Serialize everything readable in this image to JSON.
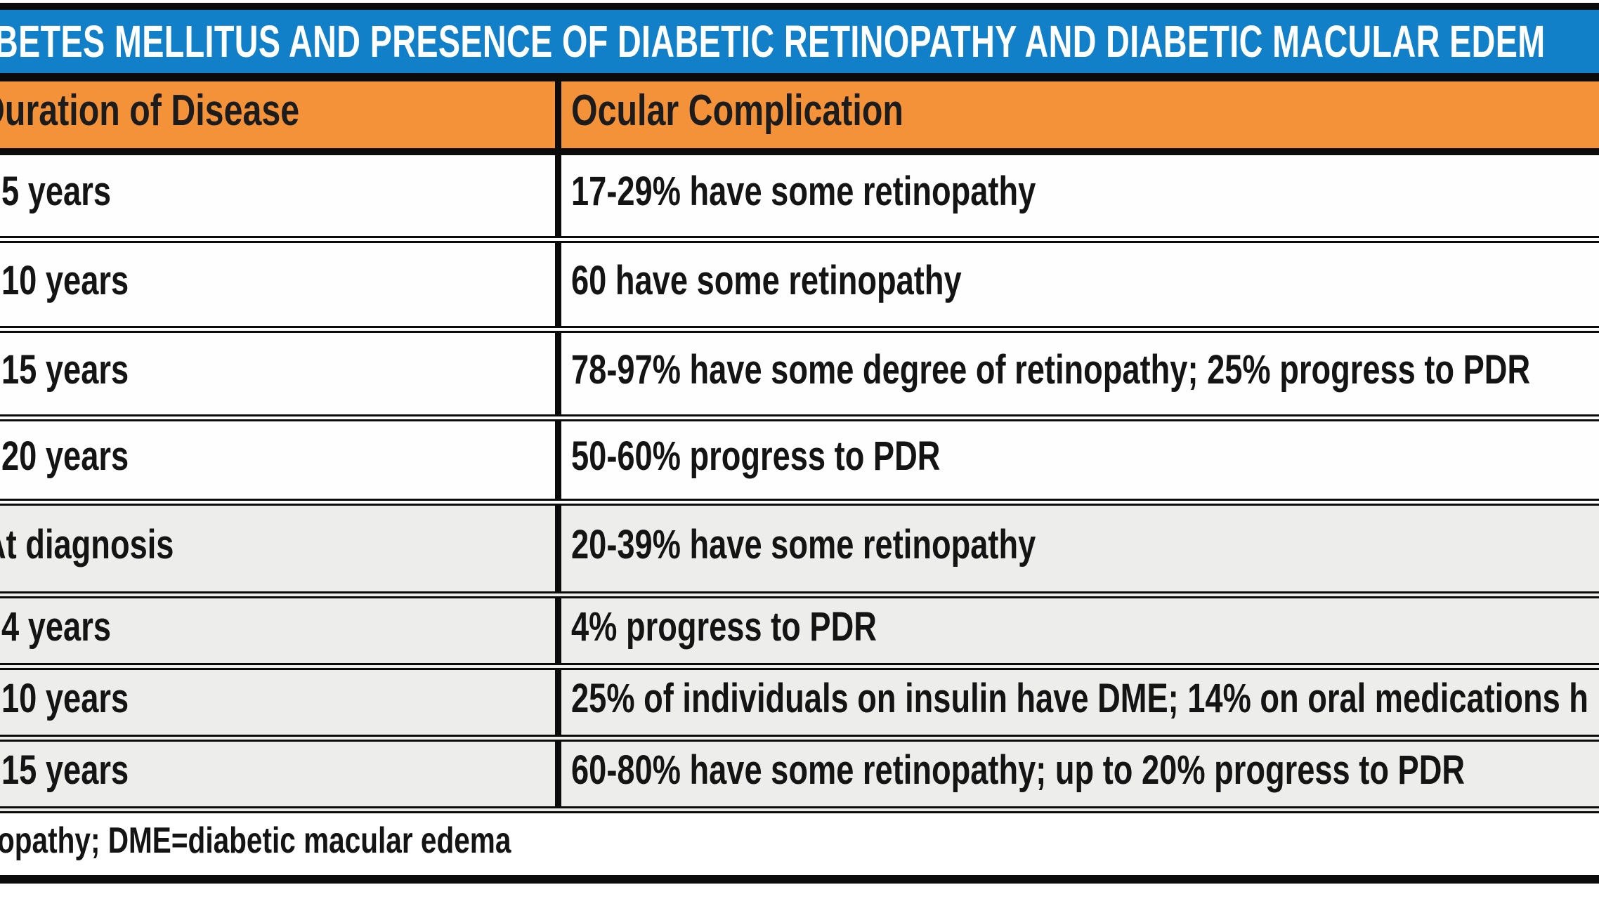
{
  "title": {
    "text": "BETES MELLITUS AND PRESENCE OF DIABETIC RETINOPATHY AND DIABETIC MACULAR EDEM"
  },
  "table": {
    "columns": [
      {
        "label": "Duration of Disease"
      },
      {
        "label": "Ocular Complication"
      }
    ],
    "rows": [
      {
        "duration": "5 years",
        "complication": "17-29% have some retinopathy"
      },
      {
        "duration": "10 years",
        "complication": "60 have some retinopathy"
      },
      {
        "duration": "15 years",
        "complication": "78-97% have some degree of retinopathy; 25% progress to PDR"
      },
      {
        "duration": "20 years",
        "complication": "50-60% progress to PDR"
      },
      {
        "duration": "At diagnosis",
        "complication": "20-39% have some retinopathy"
      },
      {
        "duration": "4 years",
        "complication": "4% progress to PDR"
      },
      {
        "duration": "10 years",
        "complication": "25% of individuals on insulin have DME; 14% on oral medications h"
      },
      {
        "duration": "15 years",
        "complication": "60-80% have some retinopathy; up to 20% progress to PDR"
      }
    ],
    "footnote": "opathy; DME=diabetic macular edema"
  },
  "colors": {
    "title_bar_blue": "#1180C8",
    "header_orange": "#F4923A",
    "row_gray": "#EDEEEC",
    "border_black": "#0B0B0B"
  }
}
